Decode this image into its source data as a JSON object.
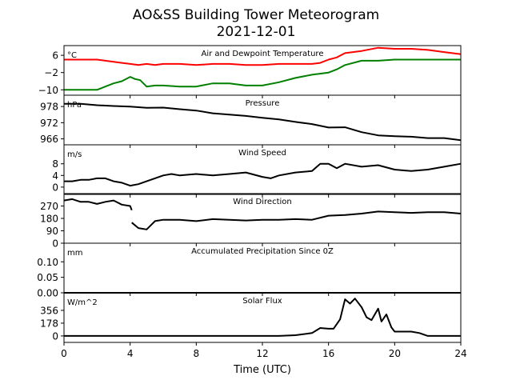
{
  "chart_data": {
    "type": "line",
    "title": "AO&SS Building Tower Meteorogram",
    "subtitle": "2021-12-01",
    "xlabel": "Time (UTC)",
    "xlim": [
      0,
      24
    ],
    "xticks": [
      0,
      4,
      8,
      12,
      16,
      20,
      24
    ],
    "xtick_labels": [
      "0",
      "4",
      "8",
      "12",
      "16",
      "20",
      "24"
    ],
    "panels": [
      {
        "id": "temp",
        "title": "Air and Dewpoint Temperature",
        "unit": "°C",
        "ylim": [
          -12.5,
          10.5
        ],
        "yticks": [
          6,
          -2,
          -10
        ],
        "ytick_labels": [
          "6",
          "−2",
          "−10"
        ],
        "series": [
          {
            "color": "#ff0000",
            "x": [
              0,
              1,
              2,
              3,
              3.5,
              4,
              4.5,
              5,
              5.5,
              6,
              7,
              8,
              9,
              10,
              11,
              12,
              13,
              14,
              15,
              15.5,
              16,
              16.5,
              17,
              18,
              19,
              20,
              21,
              22,
              23,
              24
            ],
            "y": [
              4,
              4,
              4,
              3,
              2.5,
              2,
              1.5,
              2,
              1.5,
              2,
              2,
              1.5,
              2,
              2,
              1.5,
              1.5,
              2,
              2,
              2,
              2.5,
              4,
              5,
              7,
              8,
              9.5,
              9,
              9,
              8.5,
              7.5,
              6.5
            ]
          },
          {
            "color": "#008000",
            "x": [
              0,
              1,
              2,
              2.5,
              3,
              3.5,
              4,
              4.3,
              4.6,
              5,
              5.5,
              6,
              7,
              8,
              9,
              10,
              11,
              12,
              13,
              14,
              15,
              16,
              16.5,
              17,
              18,
              19,
              20,
              21,
              22,
              23,
              24
            ],
            "y": [
              -10,
              -10,
              -10,
              -8.5,
              -7,
              -6,
              -4,
              -5,
              -5.5,
              -8.5,
              -8,
              -8,
              -8.5,
              -8.5,
              -7,
              -7,
              -8,
              -8,
              -6.5,
              -4.5,
              -3,
              -2,
              -0.5,
              1.5,
              3.5,
              3.5,
              4,
              4,
              4,
              4,
              4
            ]
          }
        ]
      },
      {
        "id": "pressure",
        "title": "Pressure",
        "unit": "hPa",
        "ylim": [
          963.8,
          982.2
        ],
        "yticks": [
          978,
          972,
          966
        ],
        "ytick_labels": [
          "978",
          "972",
          "966"
        ],
        "series": [
          {
            "color": "#000000",
            "x": [
              0,
              1,
              2,
              3,
              4,
              5,
              6,
              7,
              8,
              9,
              10,
              11,
              12,
              13,
              14,
              15,
              16,
              17,
              18,
              19,
              20,
              21,
              22,
              23,
              24
            ],
            "y": [
              979,
              979,
              978.5,
              978.2,
              978,
              977.5,
              977.6,
              977,
              976.5,
              975.5,
              975,
              974.5,
              973.8,
              973.2,
              972.3,
              971.5,
              970.2,
              970.3,
              968.5,
              967.3,
              967,
              966.8,
              966.3,
              966.3,
              965.5
            ]
          }
        ]
      },
      {
        "id": "wind-speed",
        "title": "Wind Speed",
        "unit": "m/s",
        "ylim": [
          -2.5,
          14.5
        ],
        "yticks": [
          8,
          4,
          0
        ],
        "ytick_labels": [
          "8",
          "4",
          "0"
        ],
        "series": [
          {
            "color": "#000000",
            "x": [
              0,
              0.5,
              1,
              1.5,
              2,
              2.5,
              3,
              3.5,
              4,
              4.5,
              5,
              5.5,
              6,
              6.5,
              7,
              8,
              9,
              10,
              11,
              12,
              12.5,
              13,
              14,
              15,
              15.5,
              16,
              16.5,
              17,
              18,
              19,
              20,
              21,
              22,
              23,
              24
            ],
            "y": [
              2,
              2,
              2.5,
              2.5,
              3,
              3,
              2,
              1.5,
              0.5,
              1,
              2,
              3,
              4,
              4.5,
              4,
              4.5,
              4,
              4.5,
              5,
              3.5,
              3,
              4,
              5,
              5.5,
              8,
              8,
              6.5,
              8,
              7,
              7.5,
              6,
              5.5,
              6,
              7,
              8
            ]
          }
        ]
      },
      {
        "id": "wind-direction",
        "title": "Wind Direction",
        "unit": "",
        "ylim": [
          0,
          360
        ],
        "yticks": [
          270,
          180,
          90,
          0
        ],
        "ytick_labels": [
          "270",
          "180",
          "90",
          "0"
        ],
        "series": [
          {
            "color": "#000000",
            "x": [
              0,
              0.5,
              1,
              1.5,
              2,
              2.5,
              3,
              3.5,
              4,
              4.1
            ],
            "y": [
              310,
              320,
              300,
              300,
              285,
              300,
              310,
              280,
              270,
              240
            ]
          },
          {
            "color": "#000000",
            "x": [
              4.1,
              4.5,
              5,
              5.5,
              6,
              7,
              8,
              9,
              10,
              11,
              12,
              13,
              14,
              15,
              16,
              17,
              18,
              19,
              20,
              21,
              22,
              23,
              24
            ],
            "y": [
              150,
              110,
              100,
              160,
              170,
              170,
              160,
              175,
              170,
              165,
              170,
              170,
              175,
              170,
              200,
              205,
              215,
              230,
              225,
              220,
              225,
              225,
              215
            ]
          }
        ]
      },
      {
        "id": "precip",
        "title": "Accumulated Precipitation Since 0Z",
        "unit": "mm",
        "ylim": [
          0,
          0.16
        ],
        "yticks": [
          0.1,
          0.05,
          0.0
        ],
        "ytick_labels": [
          "0.10",
          "0.05",
          "0.00"
        ],
        "series": [
          {
            "color": "#000000",
            "x": [
              0,
              24
            ],
            "y": [
              0,
              0
            ]
          }
        ]
      },
      {
        "id": "solar",
        "title": "Solar Flux",
        "unit": "W/m^2",
        "ylim": [
          -90,
          600
        ],
        "yticks": [
          356,
          178,
          0
        ],
        "ytick_labels": [
          "356",
          "178",
          "0"
        ],
        "series": [
          {
            "color": "#000000",
            "x": [
              0,
              13,
              14,
              15,
              15.5,
              16,
              16.3,
              16.7,
              17,
              17.3,
              17.6,
              18,
              18.3,
              18.6,
              19,
              19.2,
              19.5,
              19.8,
              20,
              20.5,
              21,
              21.5,
              22,
              22.5,
              24
            ],
            "y": [
              0,
              0,
              10,
              40,
              110,
              100,
              100,
              230,
              510,
              450,
              520,
              400,
              260,
              220,
              380,
              200,
              300,
              120,
              60,
              60,
              60,
              40,
              0,
              0,
              0
            ]
          }
        ]
      }
    ]
  }
}
